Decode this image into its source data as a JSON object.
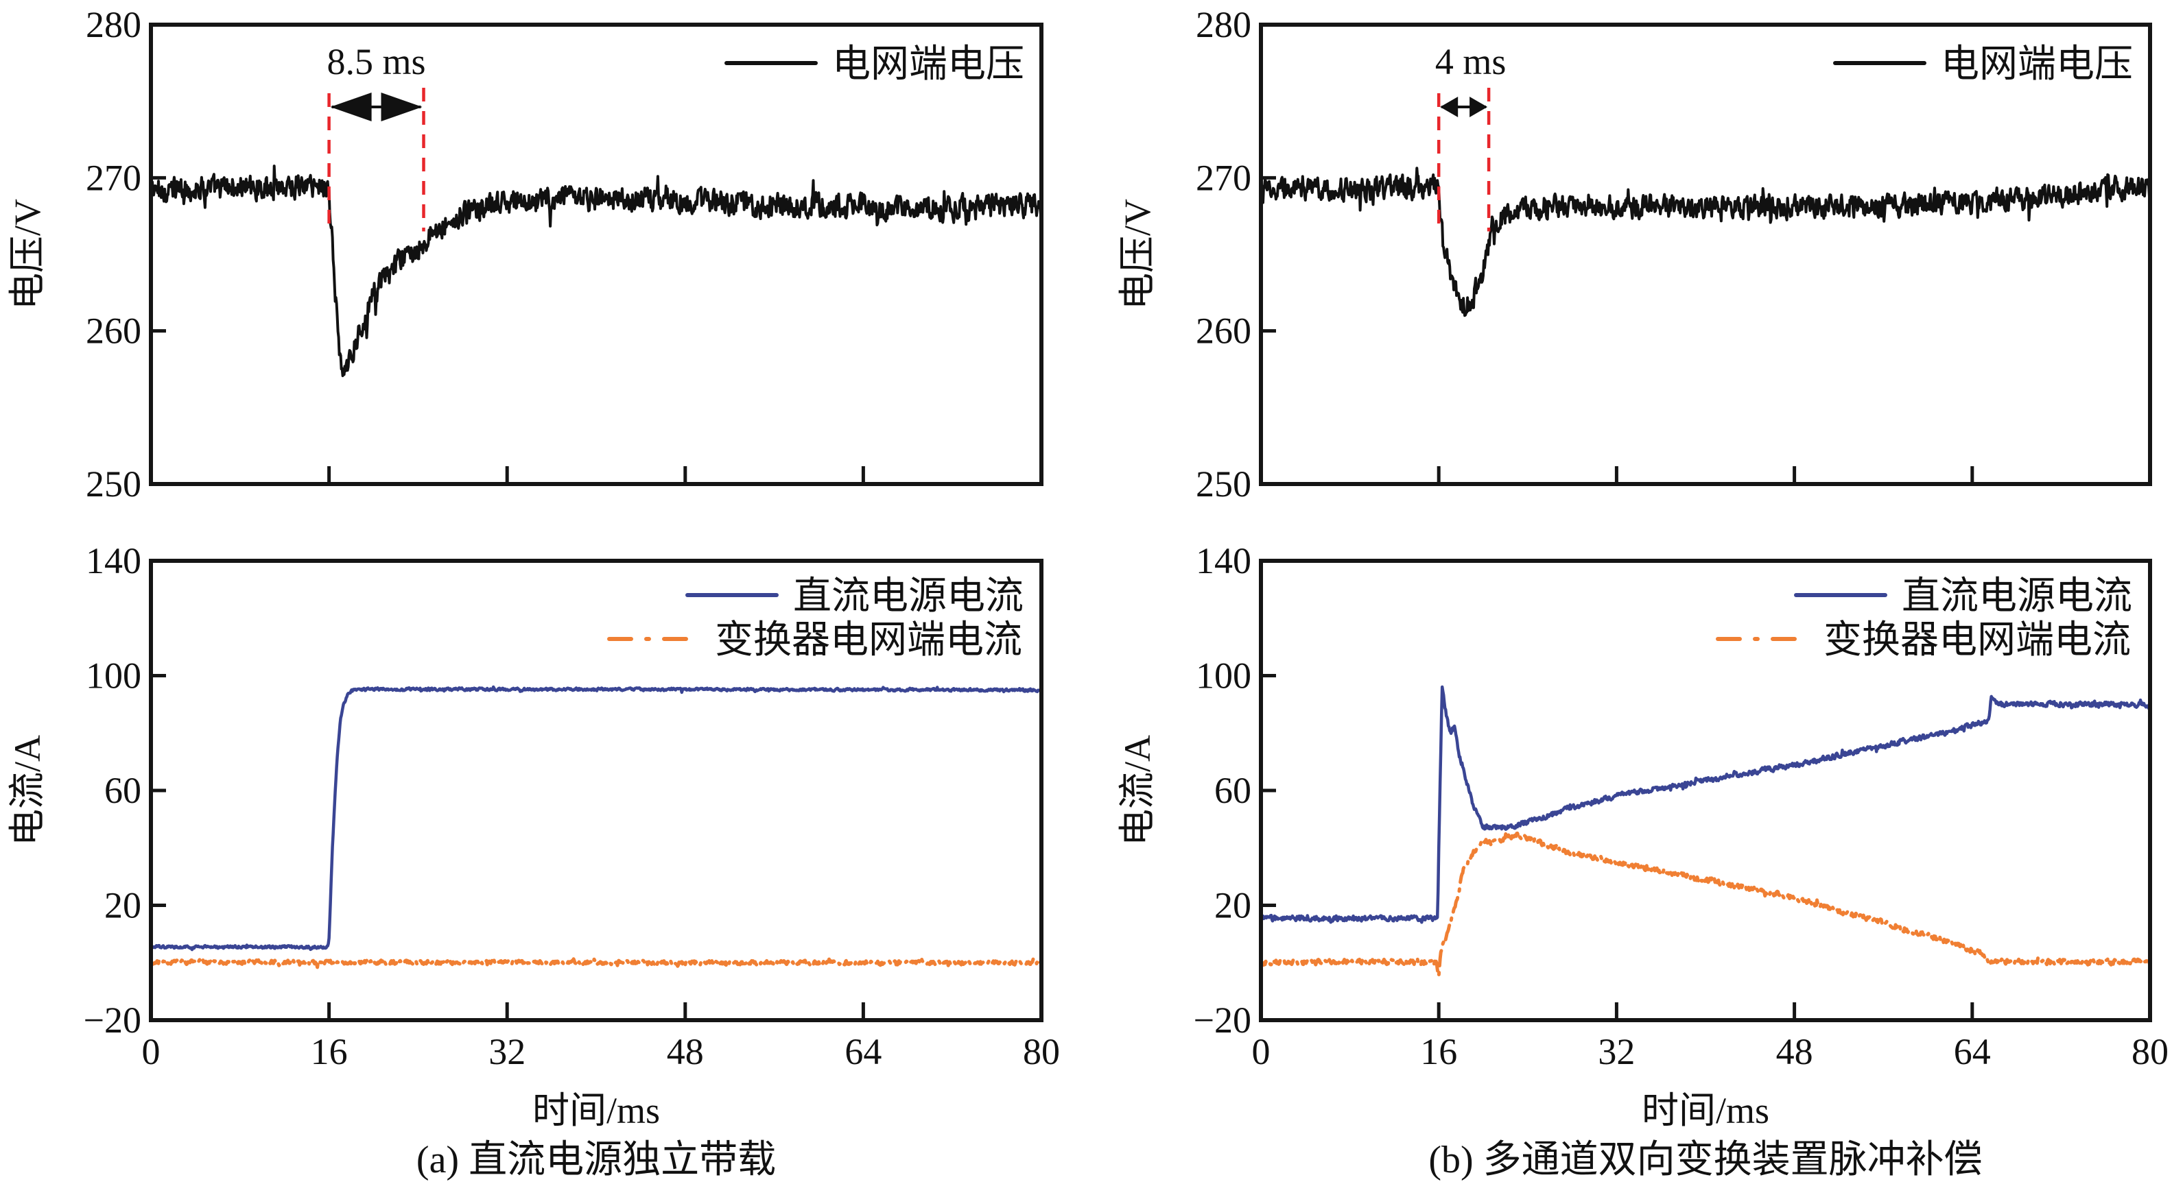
{
  "figure": {
    "panels": [
      {
        "id": "a",
        "caption": "(a) 直流电源独立带载",
        "xlabel": "时间/ms"
      },
      {
        "id": "b",
        "caption": "(b) 多通道双向变换装置脉冲补偿",
        "xlabel": "时间/ms"
      }
    ]
  },
  "chart_data": [
    {
      "type": "line",
      "panel": "a",
      "position": "top",
      "title": "",
      "xlabel": "",
      "ylabel": "电压/V",
      "xlim": [
        0,
        80
      ],
      "ylim": [
        250,
        280
      ],
      "xticks": [
        0,
        16,
        32,
        48,
        64,
        80
      ],
      "xtick_labels_shown": false,
      "yticks": [
        250,
        260,
        270,
        280
      ],
      "ytick_labels": [
        "250",
        "260",
        "270",
        "280"
      ],
      "grid": false,
      "legend": {
        "placement": "top-right",
        "entries": [
          {
            "label": "电网端电压",
            "style": "solid",
            "color": "#111111"
          }
        ]
      },
      "annotation": {
        "text": "8.5 ms",
        "x_start": 16,
        "x_end": 24.5,
        "line_color": "#e8262b",
        "arrow_color": "#111111"
      },
      "series": [
        {
          "name": "电网端电压",
          "color": "#111111",
          "style": "solid",
          "noise_amplitude": 0.7,
          "x": [
            0,
            8,
            15.9,
            16,
            16.5,
            17,
            17.5,
            18,
            19,
            20,
            22,
            24.5,
            26,
            28,
            30,
            32,
            36,
            40,
            48,
            56,
            64,
            72,
            80
          ],
          "y": [
            269.2,
            269.4,
            269.5,
            269.0,
            263.0,
            258.0,
            257.0,
            258.5,
            260.5,
            262.5,
            264.3,
            265.8,
            266.8,
            267.6,
            268.1,
            268.4,
            268.6,
            268.6,
            268.5,
            268.2,
            268.1,
            268.0,
            268.2
          ]
        }
      ]
    },
    {
      "type": "line",
      "panel": "a",
      "position": "bottom",
      "title": "",
      "xlabel": "时间/ms",
      "ylabel": "电流/A",
      "xlim": [
        0,
        80
      ],
      "ylim": [
        -20,
        140
      ],
      "xticks": [
        0,
        16,
        32,
        48,
        64,
        80
      ],
      "xtick_labels": [
        "0",
        "16",
        "32",
        "48",
        "64",
        "80"
      ],
      "yticks": [
        -20,
        20,
        60,
        100,
        140
      ],
      "ytick_labels": [
        "−20",
        "20",
        "60",
        "100",
        "140"
      ],
      "grid": false,
      "legend": {
        "placement": "top-right",
        "entries": [
          {
            "label": "直流电源电流",
            "style": "solid",
            "color": "#3a4594"
          },
          {
            "label": "变换器电网端电流",
            "style": "dash-dot",
            "color": "#f07f33"
          }
        ]
      },
      "series": [
        {
          "name": "直流电源电流",
          "color": "#3a4594",
          "style": "solid",
          "noise_amplitude": 0.4,
          "x": [
            0,
            15.9,
            16.0,
            16.3,
            16.7,
            17.0,
            17.3,
            17.7,
            18.2,
            20,
            40,
            60,
            80
          ],
          "y": [
            5.5,
            5.5,
            8,
            40,
            70,
            84,
            90,
            93.5,
            95.2,
            95.3,
            95.2,
            95.1,
            95.0
          ]
        },
        {
          "name": "变换器电网端电流",
          "color": "#f07f33",
          "style": "dash-dot",
          "noise_amplitude": 0.6,
          "x": [
            0,
            20,
            40,
            60,
            80
          ],
          "y": [
            0.2,
            0.1,
            0.1,
            0.0,
            0.0
          ]
        }
      ]
    },
    {
      "type": "line",
      "panel": "b",
      "position": "top",
      "title": "",
      "xlabel": "",
      "ylabel": "电压/V",
      "xlim": [
        0,
        80
      ],
      "ylim": [
        250,
        280
      ],
      "xticks": [
        0,
        16,
        32,
        48,
        64,
        80
      ],
      "xtick_labels_shown": false,
      "yticks": [
        250,
        260,
        270,
        280
      ],
      "ytick_labels": [
        "250",
        "260",
        "270",
        "280"
      ],
      "grid": false,
      "legend": {
        "placement": "top-right",
        "entries": [
          {
            "label": "电网端电压",
            "style": "solid",
            "color": "#111111"
          }
        ]
      },
      "annotation": {
        "text": "4 ms",
        "x_start": 16,
        "x_end": 20.5,
        "line_color": "#e8262b",
        "arrow_color": "#111111"
      },
      "series": [
        {
          "name": "电网端电压",
          "color": "#111111",
          "style": "solid",
          "noise_amplitude": 0.65,
          "x": [
            0,
            8,
            15.9,
            16,
            16.4,
            17,
            17.5,
            18,
            18.7,
            19.3,
            20,
            20.6,
            21.2,
            22,
            24,
            28,
            32,
            40,
            48,
            56,
            64,
            72,
            76,
            80
          ],
          "y": [
            269.2,
            269.3,
            269.4,
            269.0,
            265.5,
            264.0,
            262.5,
            261.6,
            261.8,
            262.6,
            264.0,
            265.8,
            267.0,
            267.6,
            268.0,
            268.2,
            268.1,
            268.1,
            268.1,
            268.2,
            268.4,
            268.8,
            269.3,
            269.3
          ]
        }
      ]
    },
    {
      "type": "line",
      "panel": "b",
      "position": "bottom",
      "title": "",
      "xlabel": "时间/ms",
      "ylabel": "电流/A",
      "xlim": [
        0,
        80
      ],
      "ylim": [
        -20,
        140
      ],
      "xticks": [
        0,
        16,
        32,
        48,
        64,
        80
      ],
      "xtick_labels": [
        "0",
        "16",
        "32",
        "48",
        "64",
        "80"
      ],
      "yticks": [
        -20,
        20,
        60,
        100,
        140
      ],
      "ytick_labels": [
        "−20",
        "20",
        "60",
        "100",
        "140"
      ],
      "grid": false,
      "legend": {
        "placement": "top-right",
        "entries": [
          {
            "label": "直流电源电流",
            "style": "solid",
            "color": "#3a4594"
          },
          {
            "label": "变换器电网端电流",
            "style": "dash-dot",
            "color": "#f07f33"
          }
        ]
      },
      "series": [
        {
          "name": "直流电源电流",
          "color": "#3a4594",
          "style": "solid",
          "noise_amplitude": 0.8,
          "x": [
            0,
            15.9,
            16.0,
            16.3,
            16.6,
            17.0,
            17.4,
            17.8,
            18.4,
            19.2,
            20.0,
            21.0,
            22.0,
            24.0,
            28.0,
            32.0,
            40.0,
            48.0,
            56.0,
            62.0,
            65.5,
            65.7,
            66.5,
            70.0,
            80.0
          ],
          "y": [
            15.5,
            15.5,
            40,
            96,
            88,
            80,
            82,
            73,
            64,
            54,
            47,
            47.5,
            47,
            49,
            54,
            58,
            63.5,
            69,
            75.5,
            80.5,
            84.5,
            92,
            90,
            90.2,
            90.0
          ]
        },
        {
          "name": "变换器电网端电流",
          "color": "#f07f33",
          "style": "dash-dot",
          "noise_amplitude": 0.8,
          "x": [
            0,
            15.8,
            16.0,
            16.2,
            16.8,
            17.5,
            18.2,
            19.0,
            20.0,
            21.5,
            23.0,
            24.0,
            28.0,
            32.0,
            40.0,
            48.0,
            56.0,
            62.0,
            65.0,
            65.6,
            66.2,
            70.0,
            80.0
          ],
          "y": [
            0.2,
            0.3,
            -5,
            5,
            10,
            20,
            32,
            38,
            42,
            43,
            44.5,
            43.5,
            38,
            35,
            29,
            22.5,
            14,
            7,
            3,
            0,
            0.3,
            0.3,
            0.2
          ]
        }
      ]
    }
  ]
}
